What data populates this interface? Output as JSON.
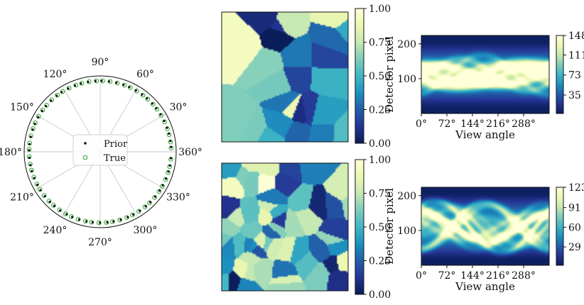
{
  "chart_data": [
    {
      "type": "scatter",
      "polar": true,
      "angle_tick_labels": [
        "0°",
        "30°",
        "60°",
        "90°",
        "120°",
        "150°",
        "180°",
        "210°",
        "240°",
        "270°",
        "300°",
        "330°"
      ],
      "angle_ticks_deg": [
        0,
        30,
        60,
        90,
        120,
        150,
        180,
        210,
        240,
        270,
        300,
        330
      ],
      "left_label_shown": "360°",
      "grid": true,
      "legend": {
        "placement": "center",
        "entries": [
          "Prior",
          "True"
        ]
      },
      "series": [
        {
          "name": "Prior",
          "marker": "dot",
          "color": "#111111",
          "angles_deg": [
            3,
            8,
            14,
            19,
            25,
            31,
            37,
            42,
            48,
            53,
            59,
            65,
            70,
            76,
            82,
            88,
            93,
            99,
            105,
            110,
            116,
            122,
            127,
            133,
            139,
            144,
            150,
            156,
            161,
            167,
            173,
            178,
            184,
            190,
            195,
            201,
            207,
            212,
            218,
            224,
            229,
            235,
            241,
            246,
            252,
            258,
            263,
            269,
            275,
            280,
            286,
            292,
            297,
            303,
            309,
            314,
            320,
            326,
            331,
            337,
            343,
            348,
            354
          ]
        },
        {
          "name": "True",
          "marker": "open-circle",
          "color": "#2ca02c",
          "angles_deg": [
            3,
            8,
            14,
            19,
            25,
            31,
            37,
            42,
            48,
            53,
            59,
            65,
            70,
            76,
            82,
            88,
            93,
            99,
            105,
            110,
            116,
            122,
            127,
            133,
            139,
            144,
            150,
            156,
            161,
            167,
            173,
            178,
            184,
            190,
            195,
            201,
            207,
            212,
            218,
            224,
            229,
            235,
            241,
            246,
            252,
            258,
            263,
            269,
            275,
            280,
            286,
            292,
            297,
            303,
            309,
            314,
            320,
            326,
            331,
            337,
            343,
            348,
            354
          ]
        }
      ]
    },
    {
      "type": "heatmap",
      "description_kind": "phantom",
      "colormap": "YlGnBu_r",
      "colorbar": {
        "ylabel": "",
        "ticks": [
          "0.00",
          "0.25",
          "0.50",
          "0.75",
          "1.00"
        ],
        "range": [
          0,
          1
        ]
      },
      "seed": 7,
      "cells": 26
    },
    {
      "type": "heatmap",
      "description_kind": "sinogram",
      "colormap": "YlGnBu_r",
      "xlabel": "View angle",
      "ylabel": "Detector pixel",
      "xticks": [
        "0°",
        "72°",
        "144°",
        "216°",
        "288°"
      ],
      "yticks": [
        "100",
        "200"
      ],
      "ylim": [
        0,
        224
      ],
      "colorbar": {
        "ticks": [
          "35",
          "73",
          "111",
          "148"
        ],
        "range": [
          0,
          148
        ]
      },
      "seed": 7
    },
    {
      "type": "heatmap",
      "description_kind": "phantom",
      "colormap": "YlGnBu_r",
      "colorbar": {
        "ticks": [
          "0.00",
          "0.25",
          "0.50",
          "0.75",
          "1.00"
        ],
        "range": [
          0,
          1
        ]
      },
      "seed": 19,
      "cells": 60
    },
    {
      "type": "heatmap",
      "description_kind": "sinogram",
      "colormap": "YlGnBu_r",
      "xlabel": "View angle",
      "ylabel": "Detector pixel",
      "xticks": [
        "0°",
        "72°",
        "144°",
        "216°",
        "288°"
      ],
      "yticks": [
        "100",
        "200"
      ],
      "ylim": [
        0,
        224
      ],
      "colorbar": {
        "ticks": [
          "29",
          "60",
          "91",
          "123"
        ],
        "range": [
          0,
          123
        ]
      },
      "seed": 19
    }
  ]
}
